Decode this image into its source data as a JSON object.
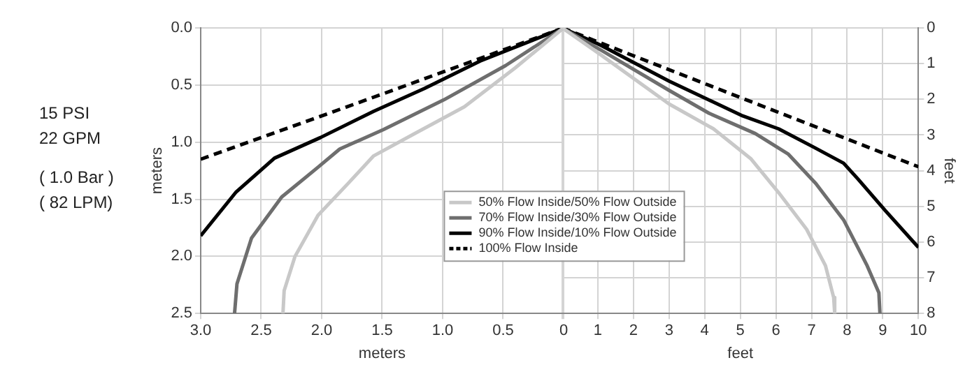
{
  "chart_data": [
    {
      "type": "other",
      "annotations": [
        "15 PSI",
        "22 GPM",
        "( 1.0 Bar )",
        "( 82 LPM)"
      ]
    },
    {
      "type": "line",
      "xlabel": "meters",
      "ylabel": "meters",
      "xlim": [
        3,
        0
      ],
      "xticks": [
        {
          "value": 3,
          "label": "3.0"
        },
        2.5,
        {
          "value": 2,
          "label": "2.0"
        },
        1.5,
        {
          "value": 1,
          "label": "1.0"
        },
        0.5,
        0
      ],
      "ylim": [
        2.5,
        0
      ],
      "yticks": [
        {
          "value": 0,
          "label": "0.0"
        },
        0.5,
        {
          "value": 1,
          "label": "1.0"
        },
        1.5,
        {
          "value": 2,
          "label": "2.0"
        },
        2.5
      ],
      "grid": true,
      "legend": "bottom",
      "series": [
        {
          "name": "50% Flow Inside/50% Flow Outside",
          "color": "#c8c8c8",
          "line_style": "solid",
          "x": [
            2.32,
            2.31,
            2.22,
            2.03,
            1.78,
            1.57,
            1.24,
            0.82,
            0.4,
            0
          ],
          "values": [
            2.5,
            2.3,
            2.0,
            1.64,
            1.36,
            1.12,
            0.93,
            0.69,
            0.35,
            0
          ]
        },
        {
          "name": "70% Flow Inside/30% Flow Outside",
          "color": "#6e6e6e",
          "line_style": "solid",
          "x": [
            2.72,
            2.7,
            2.58,
            2.33,
            2.03,
            1.85,
            1.49,
            0.99,
            0.48,
            0
          ],
          "values": [
            2.5,
            2.24,
            1.84,
            1.48,
            1.22,
            1.06,
            0.89,
            0.63,
            0.33,
            0
          ]
        },
        {
          "name": "90% Flow Inside/10% Flow Outside",
          "color": "#000000",
          "line_style": "solid",
          "x": [
            3.0,
            2.71,
            2.39,
            2.01,
            1.57,
            1.15,
            0.69,
            0
          ],
          "values": [
            1.82,
            1.44,
            1.14,
            0.96,
            0.73,
            0.53,
            0.29,
            0
          ]
        },
        {
          "name": "100% Flow Inside",
          "color": "#000000",
          "line_style": "dashed",
          "x": [
            3.0,
            1.5,
            0
          ],
          "values": [
            1.15,
            0.58,
            0
          ]
        }
      ]
    },
    {
      "type": "line",
      "xlabel": "feet",
      "y2label": "feet",
      "xlim": [
        0,
        10
      ],
      "xticks": [
        {
          "value": 0,
          "label": null
        },
        1,
        2,
        3,
        4,
        5,
        6,
        7,
        8,
        9,
        10
      ],
      "y2lim": [
        8,
        0
      ],
      "y2ticks": [
        0,
        1,
        2,
        3,
        4,
        5,
        6,
        7,
        8
      ],
      "grid": true,
      "series": [
        {
          "color": "#c8c8c8",
          "line_style": "solid",
          "axis": "y2",
          "x": [
            0,
            1.05,
            3.0,
            4.25,
            5.29,
            6.08,
            6.86,
            7.39,
            7.62,
            7.65
          ],
          "values": [
            0,
            0.73,
            2.13,
            2.83,
            3.66,
            4.62,
            5.64,
            6.66,
            7.55,
            8.0
          ]
        },
        {
          "color": "#6e6e6e",
          "line_style": "solid",
          "axis": "y2",
          "x": [
            0,
            1.05,
            3.0,
            4.12,
            5.42,
            6.34,
            7.12,
            7.9,
            8.56,
            8.89,
            8.92
          ],
          "values": [
            0,
            0.6,
            1.75,
            2.39,
            2.96,
            3.53,
            4.36,
            5.38,
            6.66,
            7.42,
            8.0
          ]
        },
        {
          "color": "#000000",
          "line_style": "solid",
          "axis": "y2",
          "x": [
            0,
            1.05,
            3.0,
            5.03,
            6.08,
            7.06,
            7.9,
            8.3,
            9.08,
            10
          ],
          "values": [
            0,
            0.47,
            1.49,
            2.45,
            2.83,
            3.34,
            3.79,
            4.23,
            5.13,
            6.15
          ]
        },
        {
          "color": "#000000",
          "line_style": "dashed",
          "axis": "y2",
          "x": [
            0,
            5,
            10
          ],
          "values": [
            0,
            1.95,
            3.89
          ]
        }
      ]
    }
  ]
}
